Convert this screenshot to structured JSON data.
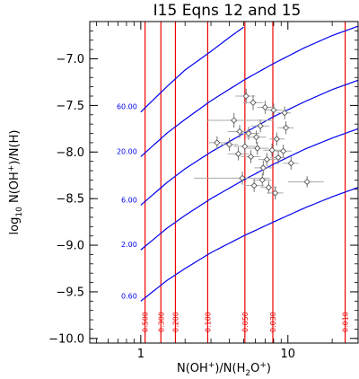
{
  "chart_data": {
    "type": "line",
    "title": "I15 Eqns 12 and 15",
    "x_axis": {
      "label_parts": [
        "N(OH",
        "+",
        ")/N(H",
        "2",
        "O",
        "+",
        ")"
      ],
      "scale": "log",
      "range": [
        0.45,
        30
      ],
      "tick_labels": [
        {
          "value": 1,
          "label": "1"
        },
        {
          "value": 10,
          "label": "10"
        }
      ]
    },
    "y_axis": {
      "label_parts": [
        "log",
        "10",
        " N(OH",
        "+",
        ")/N(H)"
      ],
      "range": [
        -10.05,
        -6.6
      ],
      "tick_labels": [
        {
          "value": -7.0,
          "label": "−7.0"
        },
        {
          "value": -7.5,
          "label": "−7.5"
        },
        {
          "value": -8.0,
          "label": "−8.0"
        },
        {
          "value": -8.5,
          "label": "−8.5"
        },
        {
          "value": -9.0,
          "label": "−9.0"
        },
        {
          "value": -9.5,
          "label": "−9.5"
        },
        {
          "value": -10.0,
          "label": "−10.0"
        }
      ]
    },
    "curve_color": "#0000ee",
    "vline_color": "#ee0000",
    "point_color": "#555555",
    "curves": [
      {
        "label": "0.60",
        "label_y": -9.6,
        "x": [
          1,
          1.5,
          2,
          3,
          5,
          8,
          13,
          20,
          30
        ],
        "y": [
          -9.6,
          -9.38,
          -9.25,
          -9.08,
          -8.9,
          -8.75,
          -8.6,
          -8.48,
          -8.38
        ]
      },
      {
        "label": "2.00",
        "label_y": -9.05,
        "x": [
          1,
          1.5,
          2,
          3,
          5,
          8,
          13,
          20,
          30
        ],
        "y": [
          -9.05,
          -8.82,
          -8.68,
          -8.5,
          -8.3,
          -8.13,
          -7.97,
          -7.85,
          -7.75
        ]
      },
      {
        "label": "6.00",
        "label_y": -8.57,
        "x": [
          1,
          1.5,
          2,
          3,
          5,
          8,
          13,
          20,
          30
        ],
        "y": [
          -8.57,
          -8.33,
          -8.18,
          -8.0,
          -7.8,
          -7.62,
          -7.46,
          -7.33,
          -7.23
        ]
      },
      {
        "label": "20.00",
        "label_y": -8.05,
        "x": [
          1,
          1.5,
          2,
          3,
          5,
          8,
          13,
          20,
          30
        ],
        "y": [
          -8.05,
          -7.8,
          -7.65,
          -7.45,
          -7.23,
          -7.05,
          -6.88,
          -6.75,
          -6.65
        ]
      },
      {
        "label": "60.00",
        "label_y": -7.57,
        "x": [
          1,
          1.5,
          2,
          3,
          4,
          5
        ],
        "y": [
          -7.57,
          -7.3,
          -7.12,
          -6.92,
          -6.77,
          -6.66
        ]
      }
    ],
    "vlines": [
      {
        "label": "0.500",
        "x": 1.07
      },
      {
        "label": "0.300",
        "x": 1.37
      },
      {
        "label": "0.200",
        "x": 1.72
      },
      {
        "label": "0.100",
        "x": 2.85
      },
      {
        "label": "0.050",
        "x": 5.1
      },
      {
        "label": "0.030",
        "x": 7.9
      },
      {
        "label": "0.010",
        "x": 24.5
      }
    ],
    "points": [
      {
        "x": 5.2,
        "y": -7.4,
        "xerr": [
          4.4,
          6.0
        ],
        "yerr": 0.08
      },
      {
        "x": 5.8,
        "y": -7.47,
        "xerr": [
          5.0,
          6.8
        ],
        "yerr": 0.08
      },
      {
        "x": 7.0,
        "y": -7.52,
        "xerr": [
          6.2,
          8.0
        ],
        "yerr": 0.07
      },
      {
        "x": 8.0,
        "y": -7.55,
        "xerr": [
          7.0,
          9.2
        ],
        "yerr": 0.07
      },
      {
        "x": 9.5,
        "y": -7.58,
        "xerr": [
          8.5,
          10.5
        ],
        "yerr": 0.07
      },
      {
        "x": 4.3,
        "y": -7.66,
        "xerr": [
          2.8,
          8.0
        ],
        "yerr": 0.08
      },
      {
        "x": 6.5,
        "y": -7.72,
        "xerr": [
          5.6,
          7.5
        ],
        "yerr": 0.07
      },
      {
        "x": 9.7,
        "y": -7.74,
        "xerr": [
          8.5,
          11.0
        ],
        "yerr": 0.07
      },
      {
        "x": 4.7,
        "y": -7.78,
        "xerr": [
          3.9,
          5.6
        ],
        "yerr": 0.07
      },
      {
        "x": 5.4,
        "y": -7.8,
        "xerr": [
          4.6,
          6.4
        ],
        "yerr": 0.07
      },
      {
        "x": 6.1,
        "y": -7.84,
        "xerr": [
          5.2,
          7.1
        ],
        "yerr": 0.07
      },
      {
        "x": 8.4,
        "y": -7.86,
        "xerr": [
          7.5,
          9.5
        ],
        "yerr": 0.07
      },
      {
        "x": 3.3,
        "y": -7.9,
        "xerr": [
          2.9,
          3.8
        ],
        "yerr": 0.07
      },
      {
        "x": 4.0,
        "y": -7.92,
        "xerr": [
          3.5,
          4.6
        ],
        "yerr": 0.07
      },
      {
        "x": 5.1,
        "y": -7.94,
        "xerr": [
          4.3,
          6.0
        ],
        "yerr": 0.07
      },
      {
        "x": 6.2,
        "y": -7.96,
        "xerr": [
          5.3,
          7.4
        ],
        "yerr": 0.07
      },
      {
        "x": 7.8,
        "y": -7.98,
        "xerr": [
          6.8,
          9.0
        ],
        "yerr": 0.07
      },
      {
        "x": 9.3,
        "y": -7.99,
        "xerr": [
          8.2,
          10.6
        ],
        "yerr": 0.07
      },
      {
        "x": 4.6,
        "y": -8.02,
        "xerr": [
          3.9,
          5.4
        ],
        "yerr": 0.07
      },
      {
        "x": 5.6,
        "y": -8.05,
        "xerr": [
          4.8,
          6.5
        ],
        "yerr": 0.07
      },
      {
        "x": 8.6,
        "y": -8.06,
        "xerr": [
          7.6,
          9.8
        ],
        "yerr": 0.07
      },
      {
        "x": 7.2,
        "y": -8.08,
        "xerr": [
          6.3,
          8.3
        ],
        "yerr": 0.07
      },
      {
        "x": 10.5,
        "y": -8.12,
        "xerr": [
          9.3,
          11.8
        ],
        "yerr": 0.07
      },
      {
        "x": 6.8,
        "y": -8.17,
        "xerr": [
          5.9,
          7.8
        ],
        "yerr": 0.08
      },
      {
        "x": 4.9,
        "y": -8.28,
        "xerr": [
          2.3,
          7.5
        ],
        "yerr": 0.07
      },
      {
        "x": 6.7,
        "y": -8.3,
        "xerr": [
          5.8,
          7.7
        ],
        "yerr": 0.07
      },
      {
        "x": 5.9,
        "y": -8.36,
        "xerr": [
          5.0,
          6.9
        ],
        "yerr": 0.07
      },
      {
        "x": 13.5,
        "y": -8.32,
        "xerr": [
          10.0,
          17.5
        ],
        "yerr": 0.06
      },
      {
        "x": 7.4,
        "y": -8.38,
        "xerr": [
          6.5,
          8.4
        ],
        "yerr": 0.07
      },
      {
        "x": 8.2,
        "y": -8.44,
        "xerr": [
          7.2,
          9.3
        ],
        "yerr": 0.07
      }
    ]
  }
}
